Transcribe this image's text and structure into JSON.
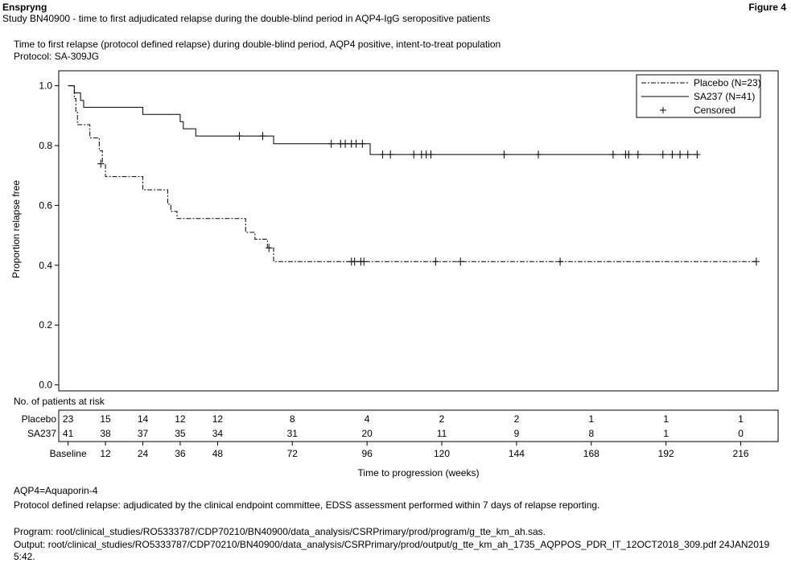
{
  "header": {
    "product": "Enspryng",
    "figure": "Figure 4",
    "study": "Study BN40900 - time to first adjudicated relapse during the double-blind period in AQP4-IgG seropositive patients"
  },
  "subtitle": {
    "line1": "Time to first relapse (protocol defined relapse) during double-blind period, AQP4 positive, intent-to-treat population",
    "line2": "Protocol: SA-309JG"
  },
  "legend": {
    "placebo": "Placebo (N=23)",
    "sa237": "SA237 (N=41)",
    "censored": "Censored"
  },
  "risk_table": {
    "title": "No. of patients at risk",
    "rows": [
      {
        "label": "Placebo",
        "values": [
          "23",
          "15",
          "14",
          "12",
          "12",
          "8",
          "4",
          "2",
          "2",
          "1",
          "1",
          "1"
        ]
      },
      {
        "label": "SA237",
        "values": [
          "41",
          "38",
          "37",
          "35",
          "34",
          "31",
          "20",
          "11",
          "9",
          "8",
          "1",
          "0"
        ]
      }
    ]
  },
  "footnotes": {
    "abbrev": "AQP4=Aquaporin-4",
    "relapse": "Protocol defined relapse: adjudicated by the clinical endpoint committee, EDSS assessment performed within 7 days of relapse reporting.",
    "program": "Program: root/clinical_studies/RO5333787/CDP70210/BN40900/data_analysis/CSRPrimary/prod/program/g_tte_km_ah.sas.",
    "output": "Output: root/clinical_studies/RO5333787/CDP70210/BN40900/data_analysis/CSRPrimary/prod/output/g_tte_km_ah_1735_AQPPOS_PDR_IT_12OCT2018_309.pdf 24JAN2019 5:42."
  },
  "chart_data": {
    "type": "line",
    "chart_subtype": "kaplan-meier",
    "xlabel": "Time to progression (weeks)",
    "ylabel": "Proportion relapse free",
    "xlim": [
      -3,
      228
    ],
    "ylim": [
      -0.02,
      1.05
    ],
    "x_ticks": [
      0,
      12,
      24,
      36,
      48,
      72,
      96,
      120,
      144,
      168,
      192,
      216
    ],
    "x_tick_labels": [
      "Baseline",
      "12",
      "24",
      "36",
      "48",
      "72",
      "96",
      "120",
      "144",
      "168",
      "192",
      "216"
    ],
    "y_ticks": [
      0.0,
      0.2,
      0.4,
      0.6,
      0.8,
      1.0
    ],
    "y_tick_labels": [
      "0.0",
      "0.2",
      "0.4",
      "0.6",
      "0.8",
      "1.0"
    ],
    "grid": false,
    "legend_position": "top-right",
    "series": [
      {
        "name": "Placebo (N=23)",
        "style": "dash-dot",
        "x": [
          0,
          2,
          2.5,
          3,
          7,
          10,
          11,
          12,
          24,
          32,
          33,
          35,
          57,
          60,
          64,
          66
        ],
        "y": [
          1.0,
          0.957,
          0.913,
          0.87,
          0.826,
          0.783,
          0.739,
          0.696,
          0.652,
          0.604,
          0.58,
          0.556,
          0.51,
          0.487,
          0.458,
          0.412
        ],
        "censored_x": [
          10.5,
          64.5,
          91,
          92,
          94,
          95,
          118,
          126,
          158,
          221
        ],
        "censored_y": [
          0.739,
          0.458,
          0.412,
          0.412,
          0.412,
          0.412,
          0.412,
          0.412,
          0.412,
          0.412
        ]
      },
      {
        "name": "SA237 (N=41)",
        "style": "solid",
        "x": [
          0,
          2,
          4,
          5,
          24,
          36,
          37,
          41,
          66,
          97
        ],
        "y": [
          1.0,
          0.976,
          0.951,
          0.928,
          0.904,
          0.88,
          0.856,
          0.832,
          0.806,
          0.77
        ],
        "censored_x": [
          55,
          62.5,
          84.5,
          87.5,
          89,
          91,
          92.5,
          94.5,
          101,
          103.5,
          111,
          113.5,
          115,
          116.5,
          140,
          151,
          175,
          179,
          180,
          183,
          191,
          194,
          196.5,
          199,
          202
        ],
        "censored_y": [
          0.832,
          0.832,
          0.806,
          0.806,
          0.806,
          0.806,
          0.806,
          0.806,
          0.77,
          0.77,
          0.77,
          0.77,
          0.77,
          0.77,
          0.77,
          0.77,
          0.77,
          0.77,
          0.77,
          0.77,
          0.77,
          0.77,
          0.77,
          0.77,
          0.77
        ]
      }
    ]
  }
}
